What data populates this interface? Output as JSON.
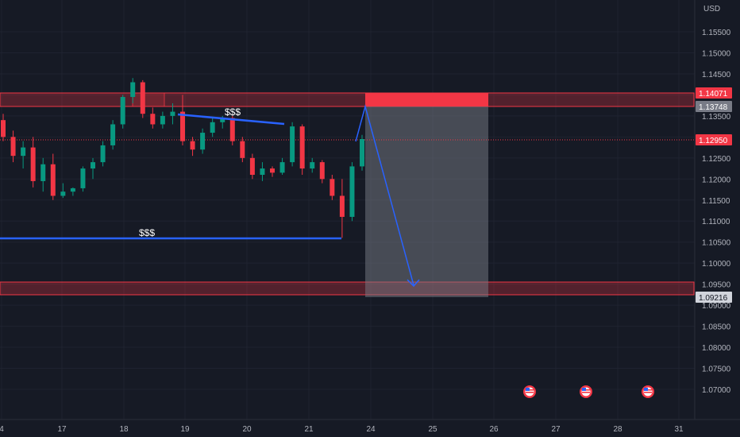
{
  "chart_data": {
    "type": "candlestick",
    "symbol_currency": "USD",
    "y_axis": {
      "ylim": [
        1.066,
        1.1625
      ],
      "ticks": [
        "1.15500",
        "1.15000",
        "1.14500",
        "1.14000",
        "1.13500",
        "1.13000",
        "1.12500",
        "1.12000",
        "1.11500",
        "1.11000",
        "1.10500",
        "1.10000",
        "1.09500",
        "1.09000",
        "1.08500",
        "1.08000",
        "1.07500",
        "1.07000"
      ]
    },
    "x_axis": {
      "tick_labels": [
        "4",
        "17",
        "18",
        "19",
        "20",
        "21",
        "24",
        "25",
        "26",
        "27",
        "28",
        "31"
      ]
    },
    "price_labels": [
      {
        "name": "zone-top",
        "value": "1.14071",
        "bg": "#f23645",
        "fg": "#ffffff"
      },
      {
        "name": "zone-bottom",
        "value": "1.13748",
        "bg": "#787b86",
        "fg": "#ffffff"
      },
      {
        "name": "last-price",
        "value": "1.12950",
        "bg": "#f23645",
        "fg": "#ffffff"
      },
      {
        "name": "target",
        "value": "1.09216",
        "bg": "#d1d4dc",
        "fg": "#131722"
      }
    ],
    "annotations": [
      {
        "text": "$$$"
      },
      {
        "text": "$$$"
      }
    ],
    "zones": [
      {
        "name": "supply-zone",
        "from": 1.1375,
        "to": 1.1407
      },
      {
        "name": "demand-zone",
        "from": 1.0922,
        "to": 1.0953
      }
    ],
    "trade_projection": {
      "entry": 1.137,
      "stop": 1.1407,
      "target": 1.0922
    },
    "candles_ohlc_approx": [
      [
        1.134,
        1.1355,
        1.129,
        1.13
      ],
      [
        1.13,
        1.1315,
        1.124,
        1.1255
      ],
      [
        1.1255,
        1.129,
        1.1225,
        1.1275
      ],
      [
        1.1275,
        1.13,
        1.118,
        1.1195
      ],
      [
        1.1195,
        1.125,
        1.117,
        1.1235
      ],
      [
        1.1235,
        1.126,
        1.115,
        1.116
      ],
      [
        1.116,
        1.119,
        1.1155,
        1.117
      ],
      [
        1.117,
        1.118,
        1.116,
        1.1178
      ],
      [
        1.1178,
        1.123,
        1.117,
        1.1225
      ],
      [
        1.1225,
        1.125,
        1.12,
        1.124
      ],
      [
        1.124,
        1.129,
        1.123,
        1.128
      ],
      [
        1.128,
        1.134,
        1.127,
        1.133
      ],
      [
        1.133,
        1.14,
        1.132,
        1.1395
      ],
      [
        1.1395,
        1.144,
        1.138,
        1.143
      ],
      [
        1.143,
        1.1435,
        1.1345,
        1.1355
      ],
      [
        1.1355,
        1.137,
        1.132,
        1.133
      ],
      [
        1.133,
        1.136,
        1.132,
        1.135
      ],
      [
        1.135,
        1.138,
        1.133,
        1.136
      ],
      [
        1.136,
        1.14,
        1.128,
        1.129
      ],
      [
        1.129,
        1.13,
        1.1255,
        1.127
      ],
      [
        1.127,
        1.132,
        1.126,
        1.131
      ],
      [
        1.131,
        1.1345,
        1.13,
        1.1335
      ],
      [
        1.1335,
        1.135,
        1.132,
        1.1345
      ],
      [
        1.1345,
        1.135,
        1.128,
        1.129
      ],
      [
        1.129,
        1.13,
        1.124,
        1.125
      ],
      [
        1.125,
        1.126,
        1.12,
        1.121
      ],
      [
        1.121,
        1.124,
        1.1195,
        1.1225
      ],
      [
        1.1225,
        1.123,
        1.1205,
        1.1215
      ],
      [
        1.1215,
        1.125,
        1.121,
        1.124
      ],
      [
        1.124,
        1.1335,
        1.123,
        1.1325
      ],
      [
        1.1325,
        1.133,
        1.121,
        1.1225
      ],
      [
        1.1225,
        1.125,
        1.1215,
        1.124
      ],
      [
        1.124,
        1.1245,
        1.119,
        1.12
      ],
      [
        1.12,
        1.121,
        1.115,
        1.116
      ],
      [
        1.116,
        1.12,
        1.106,
        1.111
      ],
      [
        1.111,
        1.124,
        1.11,
        1.123
      ],
      [
        1.123,
        1.1305,
        1.122,
        1.1295
      ]
    ]
  }
}
